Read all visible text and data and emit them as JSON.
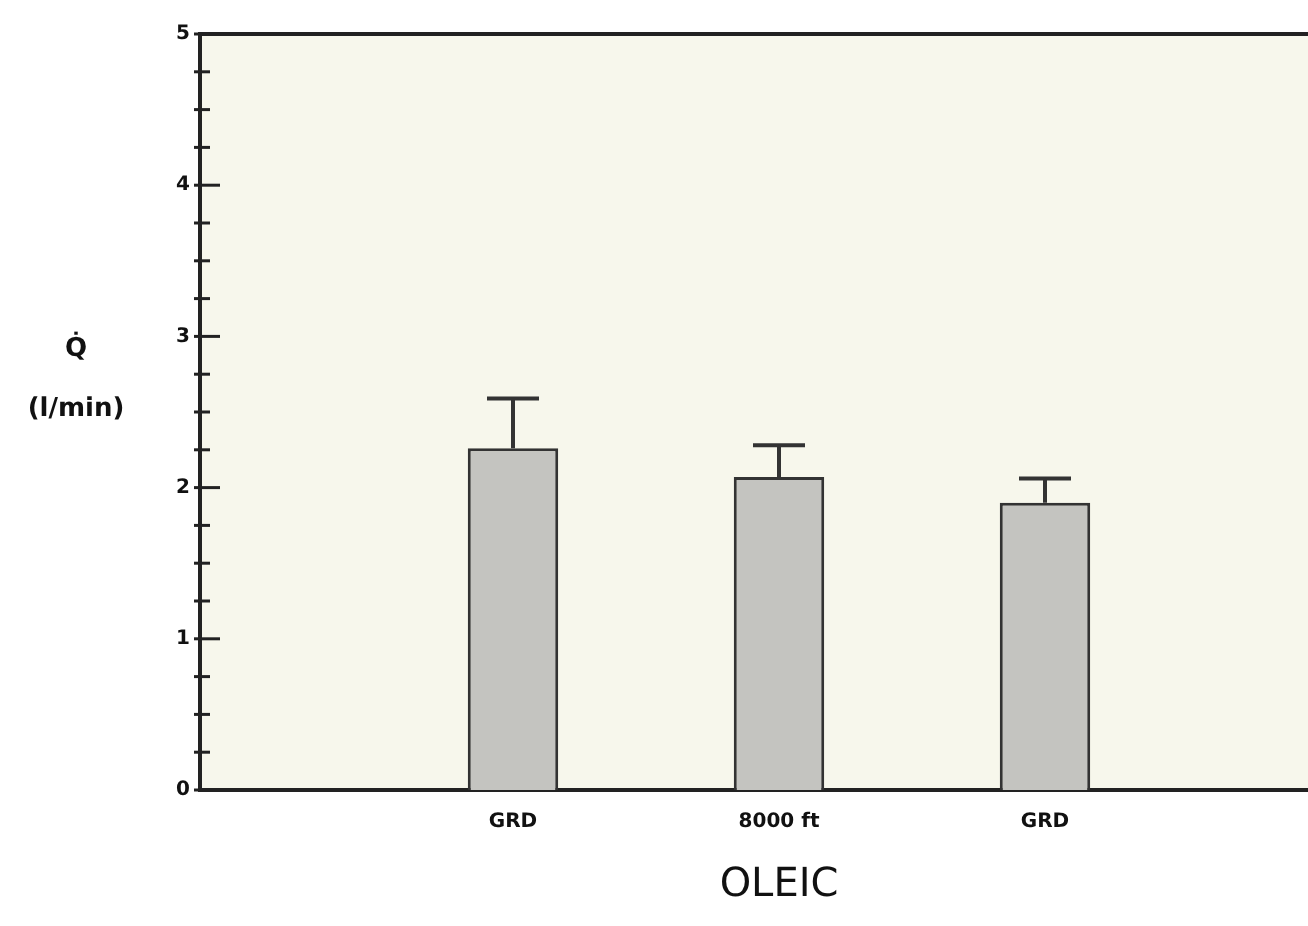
{
  "chart_data": {
    "type": "bar",
    "xlabel": "OLEIC",
    "ylabel": "Q̇\n(l/min)",
    "categories": [
      "GRD",
      "8000 ft",
      "GRD"
    ],
    "values": [
      2.26,
      2.07,
      1.9
    ],
    "errors": [
      [
        2.26,
        2.59
      ],
      [
        2.07,
        2.28
      ],
      [
        1.9,
        2.06
      ]
    ],
    "color": "#c4c4c0",
    "ylim": [
      0,
      5
    ],
    "yticks": [
      0,
      {
        "value": 0.25,
        "label": null
      },
      {
        "value": 0.5,
        "label": null
      },
      {
        "value": 0.75,
        "label": null
      },
      1,
      {
        "value": 1.25,
        "label": null
      },
      {
        "value": 1.5,
        "label": null
      },
      {
        "value": 1.75,
        "label": null
      },
      2,
      {
        "value": 2.25,
        "label": null
      },
      {
        "value": 2.5,
        "label": null
      },
      {
        "value": 2.75,
        "label": null
      },
      3,
      {
        "value": 3.25,
        "label": null
      },
      {
        "value": 3.5,
        "label": null
      },
      {
        "value": 3.75,
        "label": null
      },
      4,
      {
        "value": 4.25,
        "label": null
      },
      {
        "value": 4.5,
        "label": null
      },
      {
        "value": 4.75,
        "label": null
      },
      5
    ],
    "legend": false
  }
}
